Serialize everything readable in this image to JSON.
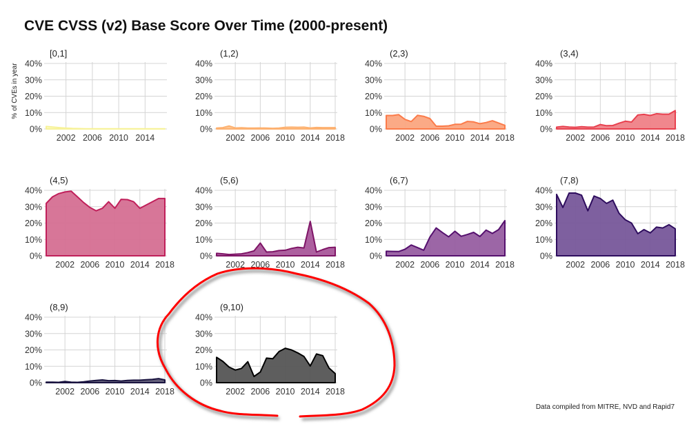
{
  "chart_data": {
    "type": "area",
    "title": "CVE CVSS (v2) Base Score Over Time (2000-present)",
    "ylabel": "% of CVEs in year",
    "xlabel": "",
    "caption": "Data compiled from MITRE, NVD and Rapid7",
    "ylim": [
      0,
      40
    ],
    "yticks": [
      0,
      10,
      20,
      30,
      40
    ],
    "ytick_labels": [
      "0%",
      "10%",
      "20%",
      "30%",
      "40%"
    ],
    "xticks": [
      2002,
      2006,
      2010,
      2014,
      2018
    ],
    "xtick_labels": [
      "2002",
      "2006",
      "2010",
      "2014",
      "2018"
    ],
    "grid": true,
    "panels": [
      {
        "name": "[0,1]",
        "color": "#F7F29A",
        "fill": "#FCFDBF",
        "x_start": 1999,
        "values": [
          1.5,
          1.2,
          0.8,
          0.5,
          0.3,
          0.2,
          0.1,
          0.1,
          0.1,
          0.1,
          0.1,
          0.1,
          0.1,
          0.1,
          0.1,
          0.1,
          0.1,
          0.1,
          0.1
        ]
      },
      {
        "name": "(1,2)",
        "color": "#FDB170",
        "fill": "#FEC48E",
        "x_start": 1999,
        "values": [
          0.5,
          0.8,
          1.8,
          0.6,
          0.7,
          0.5,
          0.5,
          0.6,
          0.5,
          0.4,
          0.5,
          1.0,
          1.1,
          1.0,
          1.1,
          0.6,
          0.9,
          0.8,
          0.8,
          0.8
        ]
      },
      {
        "name": "(2,3)",
        "color": "#FB7B4A",
        "fill": "#FBA57F",
        "x_start": 1999,
        "values": [
          8.2,
          8.2,
          8.7,
          5.8,
          4.5,
          8.3,
          7.7,
          6.3,
          1.7,
          1.7,
          1.9,
          2.8,
          2.9,
          4.6,
          4.3,
          3.2,
          3.9,
          5.0,
          3.6,
          2.2
        ]
      },
      {
        "name": "(3,4)",
        "color": "#E8404E",
        "fill": "#EF8187",
        "x_start": 1999,
        "values": [
          1.1,
          1.5,
          1.2,
          1.0,
          1.4,
          1.1,
          1.2,
          2.7,
          2.0,
          2.1,
          3.5,
          4.7,
          4.2,
          8.5,
          8.9,
          8.2,
          9.3,
          9.0,
          9.0,
          11.2
        ]
      },
      {
        "name": "(4,5)",
        "color": "#C01F5A",
        "fill": "#D56F92",
        "x_start": 1999,
        "values": [
          32,
          36,
          38,
          39,
          39.5,
          36,
          32.5,
          29.5,
          27.5,
          29,
          33,
          29,
          34.5,
          34.3,
          33,
          29,
          31,
          33,
          35,
          35
        ]
      },
      {
        "name": "(5,6)",
        "color": "#7E1466",
        "fill": "#A9579A",
        "x_start": 1999,
        "values": [
          1.5,
          1.2,
          0.8,
          1.0,
          1.2,
          2.0,
          3.0,
          7.8,
          2.3,
          2.5,
          3.2,
          3.4,
          4.5,
          5.2,
          4.8,
          21,
          2.3,
          3.8,
          5.0,
          5.2
        ]
      },
      {
        "name": "(6,7)",
        "color": "#55106E",
        "fill": "#975EA1",
        "x_start": 1999,
        "values": [
          2.8,
          2.7,
          2.6,
          4.0,
          6.6,
          5.0,
          3.4,
          11.5,
          17,
          14.2,
          11.6,
          15,
          11.9,
          13,
          14.3,
          11.8,
          15.7,
          13.7,
          16,
          21.5
        ]
      },
      {
        "name": "(7,8)",
        "color": "#2E0D5E",
        "fill": "#77579A",
        "x_start": 1999,
        "values": [
          37.5,
          29.5,
          38.3,
          38.3,
          37,
          27.5,
          36.5,
          35,
          32,
          34,
          26,
          22,
          20,
          13.5,
          16,
          14,
          17.5,
          17,
          19,
          16.5
        ]
      },
      {
        "name": "(8,9)",
        "color": "#1A1440",
        "fill": "#5B5673",
        "x_start": 1999,
        "values": [
          0.3,
          0.3,
          0.2,
          0.7,
          0.3,
          0.2,
          0.5,
          1.0,
          1.4,
          1.7,
          1.2,
          1.3,
          1.0,
          1.4,
          1.5,
          1.5,
          1.8,
          2.0,
          2.5,
          1.7
        ]
      },
      {
        "name": "(9,10)",
        "color": "#000000",
        "fill": "#555555",
        "x_start": 1999,
        "values": [
          15.5,
          13,
          9.5,
          7.7,
          8.7,
          12.8,
          3.8,
          6.5,
          15,
          14.6,
          19,
          21,
          20,
          18.2,
          16,
          10.2,
          17.5,
          16.5,
          9,
          5.5
        ]
      }
    ],
    "annotation": {
      "shape": "hand-drawn circle",
      "target": "(9,10)",
      "color": "#FF0000"
    }
  }
}
